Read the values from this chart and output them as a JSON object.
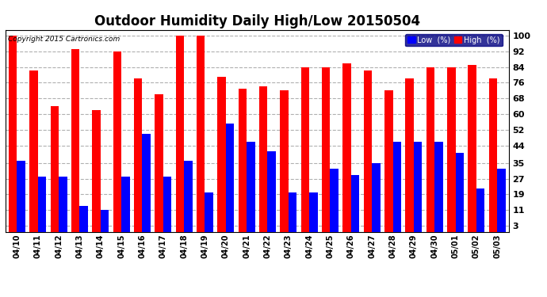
{
  "title": "Outdoor Humidity Daily High/Low 20150504",
  "copyright": "Copyright 2015 Cartronics.com",
  "dates": [
    "04/10",
    "04/11",
    "04/12",
    "04/13",
    "04/14",
    "04/15",
    "04/16",
    "04/17",
    "04/18",
    "04/19",
    "04/20",
    "04/21",
    "04/22",
    "04/23",
    "04/24",
    "04/25",
    "04/26",
    "04/27",
    "04/28",
    "04/29",
    "04/30",
    "05/01",
    "05/02",
    "05/03"
  ],
  "high": [
    100,
    82,
    64,
    93,
    62,
    92,
    78,
    70,
    100,
    100,
    79,
    73,
    74,
    72,
    84,
    84,
    86,
    82,
    72,
    78,
    84,
    84,
    85,
    78
  ],
  "low": [
    36,
    28,
    28,
    13,
    11,
    28,
    50,
    28,
    36,
    20,
    55,
    46,
    41,
    20,
    20,
    32,
    29,
    35,
    46,
    46,
    46,
    40,
    22,
    32
  ],
  "high_color": "#ff0000",
  "low_color": "#0000ff",
  "bg_color": "#ffffff",
  "grid_color": "#b0b0b0",
  "yticks": [
    3,
    11,
    19,
    27,
    35,
    44,
    52,
    60,
    68,
    76,
    84,
    92,
    100
  ],
  "ylim": [
    0,
    103
  ],
  "title_fontsize": 12,
  "bar_width": 0.4,
  "figwidth": 6.9,
  "figheight": 3.75,
  "dpi": 100
}
